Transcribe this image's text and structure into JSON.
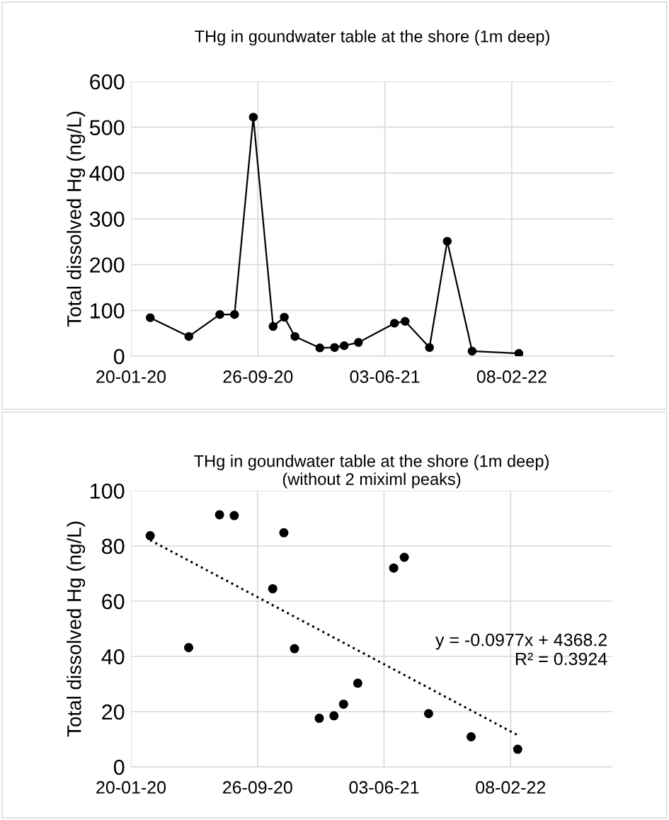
{
  "chart_data": [
    {
      "type": "line",
      "title": "THg in goundwater table at the shore (1m deep)",
      "ylabel": "Total dissolved Hg (ng/L)",
      "x": [
        "2020-02-27",
        "2020-05-13",
        "2020-07-13",
        "2020-08-11",
        "2020-09-17",
        "2020-10-26",
        "2020-11-17",
        "2020-12-08",
        "2021-01-26",
        "2021-02-24",
        "2021-03-15",
        "2021-04-12",
        "2021-06-22",
        "2021-07-13",
        "2021-08-30",
        "2021-10-04",
        "2021-11-22",
        "2022-02-22"
      ],
      "series": [
        {
          "color": "#000000",
          "values": [
            84,
            43,
            91,
            91,
            522,
            65,
            85,
            43,
            18,
            19,
            23,
            30,
            72,
            76,
            19,
            251,
            11,
            6
          ]
        }
      ],
      "marker": "circle",
      "line_style": "solid",
      "grid": true,
      "xlim": [
        "2020-01-20",
        "2022-08-28"
      ],
      "xticks": [
        {
          "value": "2020-01-20",
          "label": "20-01-20"
        },
        {
          "value": "2020-09-26",
          "label": "26-09-20"
        },
        {
          "value": "2021-06-03",
          "label": "03-06-21"
        },
        {
          "value": "2022-02-08",
          "label": "08-02-22"
        }
      ],
      "ylim": [
        0,
        600
      ],
      "yticks": [
        0,
        100,
        200,
        300,
        400,
        500,
        600
      ]
    },
    {
      "type": "scatter",
      "title": "THg in goundwater table at the shore (1m deep)\n(without 2 miximl peaks)",
      "ylabel": "Total dissolved Hg (ng/L)",
      "x": [
        "2020-02-27",
        "2020-05-13",
        "2020-07-13",
        "2020-08-11",
        "2020-10-26",
        "2020-11-17",
        "2020-12-08",
        "2021-01-26",
        "2021-02-24",
        "2021-03-15",
        "2021-04-12",
        "2021-06-22",
        "2021-07-13",
        "2021-08-30",
        "2021-11-22",
        "2022-02-22"
      ],
      "series": [
        {
          "color": "#000000",
          "marker": "circle",
          "values": [
            83.7,
            43.2,
            91.3,
            91.0,
            64.5,
            84.8,
            42.8,
            17.6,
            18.5,
            22.7,
            30.3,
            72.0,
            75.9,
            19.3,
            10.9,
            6.4
          ]
        },
        {
          "type": "line",
          "color": "#000000",
          "line_style": "dotted",
          "marker": "none",
          "x": [
            "2020-02-27",
            "2022-02-22"
          ],
          "values": [
            82.1,
            11.5
          ]
        }
      ],
      "grid": true,
      "annotations": [
        "y = -0.0977x + 4368.2\nR² = 0.3924"
      ],
      "xlim": [
        "2020-01-20",
        "2022-08-28"
      ],
      "xticks": [
        {
          "value": "2020-01-20",
          "label": "20-01-20"
        },
        {
          "value": "2020-09-26",
          "label": "26-09-20"
        },
        {
          "value": "2021-06-03",
          "label": "03-06-21"
        },
        {
          "value": "2022-02-08",
          "label": "08-02-22"
        }
      ],
      "ylim": [
        0,
        100
      ],
      "yticks": [
        0,
        20,
        40,
        60,
        80,
        100
      ]
    }
  ]
}
